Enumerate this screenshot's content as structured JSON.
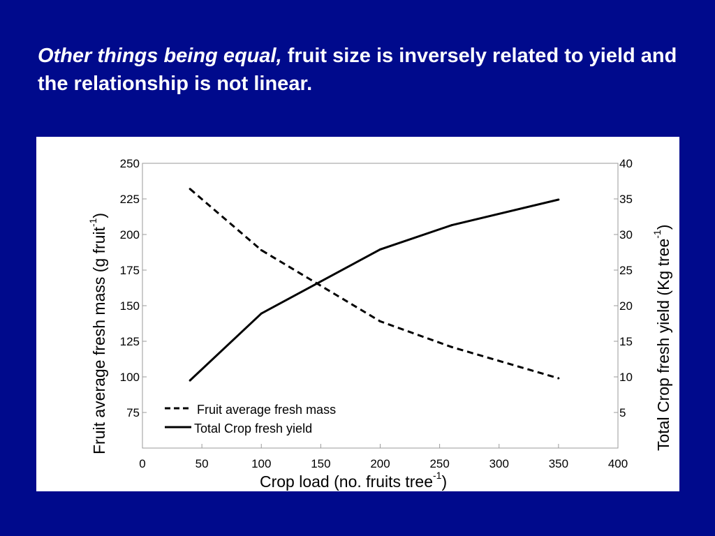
{
  "slide": {
    "title_italic": "Other things being equal,",
    "title_rest": " fruit size is inversely related to yield and the relationship is not linear.",
    "background_color": "#000a8c"
  },
  "chart_data": {
    "type": "line",
    "x": [
      40,
      100,
      200,
      260,
      350
    ],
    "xlim": [
      0,
      400
    ],
    "x_ticks": [
      0,
      50,
      100,
      150,
      200,
      250,
      300,
      350,
      400
    ],
    "xlabel_main": "Crop load (no. fruits tree",
    "xlabel_sup": "-1",
    "xlabel_close": ")",
    "y_left": {
      "label_main": "Fruit average fresh mass (g fruit",
      "label_sup": "-1",
      "label_close": ")",
      "ticks": [
        75,
        100,
        125,
        150,
        175,
        200,
        225,
        250
      ],
      "lim": [
        50,
        250
      ]
    },
    "y_right": {
      "label_main": "Total Crop fresh yield (Kg tree",
      "label_sup": "-1",
      "label_close": ")",
      "ticks": [
        5,
        10,
        15,
        20,
        25,
        30,
        35,
        40
      ],
      "lim": [
        0,
        40
      ]
    },
    "series": [
      {
        "name": "Fruit average fresh mass",
        "axis": "left",
        "style": "dashed",
        "values": [
          232,
          189,
          139,
          121,
          99
        ]
      },
      {
        "name": "Total Crop fresh yield",
        "axis": "right",
        "style": "solid",
        "values": [
          9.5,
          18.9,
          27.9,
          31.3,
          34.9
        ]
      }
    ],
    "legend_position": "bottom-left",
    "grid": false,
    "line_color": "#000000"
  }
}
